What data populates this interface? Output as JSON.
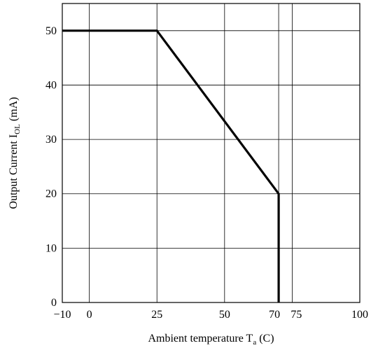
{
  "chart_data": {
    "type": "line",
    "series": [
      {
        "x": [
          -10,
          25,
          70,
          70
        ],
        "y": [
          50,
          50,
          20,
          0
        ]
      }
    ],
    "xlim": [
      -10,
      100
    ],
    "ylim": [
      0,
      55
    ],
    "x_ticks": [
      -10,
      0,
      25,
      50,
      70,
      75,
      100
    ],
    "x_tick_labels": [
      "−10",
      "0",
      "25",
      "50",
      "70",
      "75",
      "100"
    ],
    "y_ticks": [
      0,
      10,
      20,
      30,
      40,
      50
    ],
    "y_tick_labels": [
      "0",
      "10",
      "20",
      "30",
      "40",
      "50"
    ],
    "xlabel": {
      "main": "Ambient temperature T",
      "sub": "a",
      "suffix": " (C)"
    },
    "ylabel": {
      "main": "Output Current I",
      "sub": "OL",
      "suffix": " (mA)"
    },
    "grid": true,
    "colors": {
      "line": "#000000",
      "grid": "#000000",
      "background": "#ffffff"
    }
  }
}
